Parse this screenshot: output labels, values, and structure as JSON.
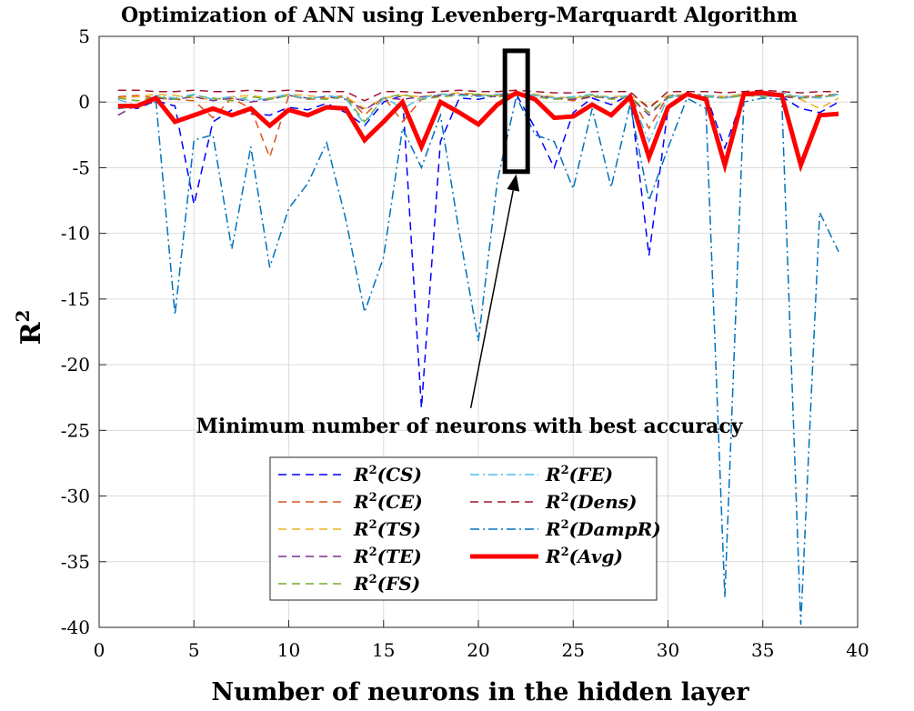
{
  "chart_data": {
    "type": "line",
    "title": "Optimization of ANN using Levenberg-Marquardt Algorithm",
    "xlabel": "Number of neurons in the hidden layer",
    "ylabel": "R",
    "ylabel_sup": "2",
    "xlim": [
      0,
      40
    ],
    "ylim": [
      -40,
      5
    ],
    "xticks": [
      0,
      5,
      10,
      15,
      20,
      25,
      30,
      35,
      40
    ],
    "yticks": [
      5,
      0,
      -5,
      -10,
      -15,
      -20,
      -25,
      -30,
      -35,
      -40
    ],
    "grid": true,
    "legend_position": "bottom-center",
    "annotation": {
      "text": "Minimum number of neurons with best accuracy",
      "highlight_x_range": [
        21.4,
        22.6
      ],
      "highlight_y_range": [
        -5.3,
        3.9
      ],
      "arrow_from": [
        19.6,
        -23.3
      ],
      "arrow_to": [
        22.0,
        -5.5
      ]
    },
    "x": [
      1,
      2,
      3,
      4,
      5,
      6,
      7,
      8,
      9,
      10,
      11,
      12,
      13,
      14,
      15,
      16,
      17,
      18,
      19,
      20,
      21,
      22,
      23,
      24,
      25,
      26,
      27,
      28,
      29,
      30,
      31,
      32,
      33,
      34,
      35,
      36,
      37,
      38,
      39
    ],
    "series": [
      {
        "name": "CS",
        "label_base": "R",
        "label_sup": "2",
        "label_arg": "(CS)",
        "color": "#0000ff",
        "style": "dashed",
        "width": 1.5,
        "values": [
          -0.2,
          -0.5,
          0.1,
          -0.3,
          -7.8,
          -1.5,
          -0.6,
          -0.9,
          -1.0,
          -0.4,
          -0.6,
          -0.1,
          -0.8,
          -1.8,
          0.0,
          0.5,
          -23.3,
          -3.0,
          0.3,
          0.2,
          0.5,
          0.6,
          -2.0,
          -5.0,
          -0.8,
          0.3,
          -0.2,
          0.6,
          -11.7,
          -0.5,
          0.5,
          0.6,
          -3.5,
          0.6,
          0.5,
          0.4,
          -0.5,
          -0.8,
          0.0
        ]
      },
      {
        "name": "CE",
        "label_base": "R",
        "label_sup": "2",
        "label_arg": "(CE)",
        "color": "#d95319",
        "style": "dashed",
        "width": 1.5,
        "values": [
          0.4,
          0.5,
          0.3,
          0.2,
          0.1,
          -1.2,
          0.3,
          -0.5,
          -4.2,
          0.5,
          0.2,
          0.3,
          0.5,
          -1.0,
          0.4,
          -1.5,
          0.2,
          0.5,
          0.6,
          0.5,
          0.5,
          0.6,
          0.5,
          0.3,
          0.1,
          0.4,
          0.3,
          0.5,
          -2.0,
          0.5,
          0.6,
          0.5,
          0.4,
          0.6,
          0.7,
          0.5,
          0.4,
          0.5,
          0.6
        ]
      },
      {
        "name": "TS",
        "label_base": "R",
        "label_sup": "2",
        "label_arg": "(TS)",
        "color": "#edb120",
        "style": "dashed",
        "width": 1.5,
        "values": [
          0.3,
          0.4,
          0.6,
          0.5,
          0.3,
          0.2,
          0.4,
          0.5,
          0.3,
          0.6,
          0.5,
          0.3,
          0.4,
          -0.5,
          0.3,
          0.5,
          0.4,
          0.6,
          0.7,
          0.6,
          0.5,
          0.7,
          0.6,
          0.4,
          0.3,
          0.5,
          0.4,
          0.5,
          -0.3,
          0.5,
          0.6,
          0.5,
          0.4,
          0.6,
          0.7,
          0.5,
          0.2,
          -0.5,
          0.3
        ]
      },
      {
        "name": "TE",
        "label_base": "R",
        "label_sup": "2",
        "label_arg": "(TE)",
        "color": "#7e2f8e",
        "style": "dashed",
        "width": 1.5,
        "values": [
          -1.0,
          -0.2,
          0.3,
          0.2,
          0.4,
          0.1,
          0.3,
          0.0,
          0.2,
          0.5,
          0.3,
          0.4,
          0.2,
          -0.6,
          0.3,
          0.2,
          0.4,
          0.5,
          0.6,
          0.5,
          0.4,
          0.7,
          0.5,
          0.3,
          0.2,
          0.4,
          0.3,
          0.4,
          -1.0,
          0.4,
          0.5,
          0.4,
          0.3,
          0.5,
          0.6,
          0.4,
          0.3,
          0.4,
          0.5
        ]
      },
      {
        "name": "FS",
        "label_base": "R",
        "label_sup": "2",
        "label_arg": "(FS)",
        "color": "#77ac30",
        "style": "dashed",
        "width": 1.5,
        "values": [
          0.3,
          0.1,
          0.4,
          0.2,
          0.5,
          0.3,
          0.1,
          0.4,
          0.2,
          0.5,
          0.3,
          0.2,
          0.4,
          -1.5,
          0.3,
          0.6,
          0.2,
          0.4,
          0.5,
          0.6,
          0.4,
          0.5,
          0.4,
          0.2,
          0.3,
          0.5,
          0.2,
          0.4,
          -0.8,
          0.3,
          0.5,
          0.4,
          0.3,
          0.5,
          0.4,
          0.6,
          0.3,
          0.4,
          0.5
        ]
      },
      {
        "name": "FE",
        "label_base": "R",
        "label_sup": "2",
        "label_arg": "(FE)",
        "color": "#4dbeee",
        "style": "dashdot",
        "width": 1.5,
        "values": [
          0.2,
          -0.3,
          0.5,
          0.3,
          0.6,
          0.2,
          0.4,
          0.1,
          0.3,
          0.6,
          0.2,
          0.5,
          0.3,
          -1.7,
          0.4,
          -0.5,
          0.3,
          0.6,
          0.5,
          0.4,
          0.6,
          0.7,
          0.5,
          0.3,
          0.4,
          0.6,
          0.3,
          0.5,
          -3.0,
          0.4,
          0.6,
          0.5,
          0.3,
          0.6,
          0.5,
          0.7,
          0.4,
          0.3,
          0.6
        ]
      },
      {
        "name": "Dens",
        "label_base": "R",
        "label_sup": "2",
        "label_arg": "(Dens)",
        "color": "#a2142f",
        "style": "dashed",
        "width": 1.5,
        "values": [
          0.9,
          0.9,
          0.8,
          0.8,
          0.9,
          0.8,
          0.8,
          0.9,
          0.8,
          0.9,
          0.8,
          0.8,
          0.8,
          0.1,
          0.8,
          0.8,
          0.7,
          0.8,
          0.9,
          0.8,
          0.8,
          0.9,
          0.8,
          0.7,
          0.7,
          0.8,
          0.8,
          0.8,
          -0.5,
          0.8,
          0.8,
          0.8,
          0.7,
          0.8,
          0.9,
          0.8,
          0.7,
          0.8,
          0.8
        ]
      },
      {
        "name": "DampR",
        "label_base": "R",
        "label_sup": "2",
        "label_arg": "(DampR)",
        "color": "#0072bd",
        "style": "dashdot",
        "width": 1.5,
        "values": [
          -0.5,
          -0.3,
          0.0,
          -16.2,
          -2.9,
          -2.5,
          -11.2,
          -3.4,
          -12.6,
          -8.1,
          -6.2,
          -3.1,
          -8.9,
          -16.0,
          -11.8,
          -2.0,
          -5.0,
          -1.0,
          -10.0,
          -18.2,
          -6.0,
          0.4,
          -2.5,
          -3.0,
          -6.6,
          -0.5,
          -6.5,
          -0.2,
          -7.5,
          -3.5,
          0.3,
          -0.5,
          -37.7,
          0.0,
          0.3,
          0.2,
          -39.8,
          -8.4,
          -11.4
        ]
      },
      {
        "name": "Avg",
        "label_base": "R",
        "label_sup": "2",
        "label_arg": "(Avg)",
        "color": "#ff0000",
        "style": "solid",
        "width": 5,
        "values": [
          -0.3,
          -0.3,
          0.3,
          -1.5,
          -1.0,
          -0.5,
          -1.0,
          -0.5,
          -1.8,
          -0.6,
          -1.0,
          -0.4,
          -0.5,
          -2.9,
          -1.5,
          0.0,
          -3.4,
          0.0,
          -0.8,
          -1.7,
          -0.2,
          0.7,
          0.2,
          -1.2,
          -1.1,
          -0.2,
          -1.0,
          0.4,
          -4.2,
          -0.4,
          0.6,
          0.2,
          -4.8,
          0.6,
          0.7,
          0.5,
          -4.8,
          -1.0,
          -0.9
        ]
      }
    ]
  }
}
